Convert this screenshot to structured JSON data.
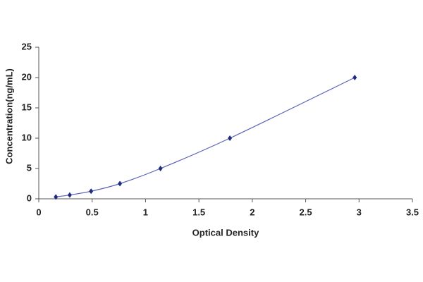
{
  "chart_data": {
    "type": "scatter",
    "x_label": "Optical Density",
    "y_label": "Concentration(ng/mL)",
    "x": [
      0.16,
      0.29,
      0.49,
      0.76,
      1.14,
      1.79,
      2.96
    ],
    "series": [
      {
        "color": "#1f2a80",
        "line_color": "#5a63b8",
        "values": [
          0.31,
          0.63,
          1.25,
          2.5,
          5,
          10,
          20
        ]
      }
    ],
    "xlim": [
      0,
      3.5
    ],
    "xticks": [
      0,
      0.5,
      1,
      1.5,
      2,
      2.5,
      3,
      3.5
    ],
    "ylim": [
      0,
      25
    ],
    "yticks": [
      0,
      5,
      10,
      15,
      20,
      25
    ],
    "grid": false
  }
}
